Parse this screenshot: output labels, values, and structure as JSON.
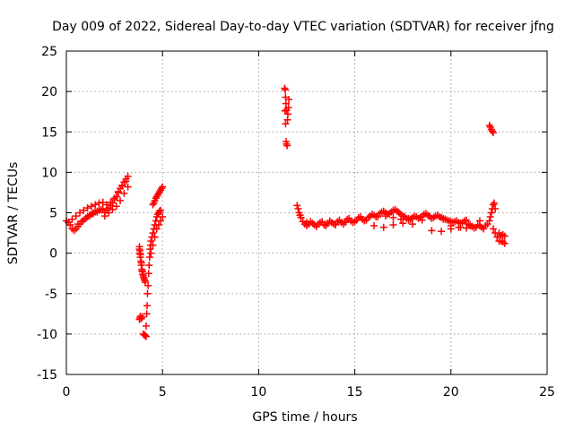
{
  "chart_data": {
    "type": "scatter",
    "title": "Day 009 of 2022, Sidereal Day-to-day VTEC variation (SDTVAR) for receiver jfng",
    "xlabel": "GPS time / hours",
    "ylabel": "SDTVAR / TECUs",
    "xlim": [
      0,
      25
    ],
    "ylim": [
      -15,
      25
    ],
    "xticks": [
      0,
      5,
      10,
      15,
      20,
      25
    ],
    "yticks": [
      -15,
      -10,
      -5,
      0,
      5,
      10,
      15,
      20,
      25
    ],
    "grid": true,
    "marker": "+",
    "colors": {
      "series": "#ff0000",
      "grid": "#a0a0a0",
      "axis": "#000000"
    },
    "series": [
      {
        "name": "SDTVAR",
        "x": [
          0.0,
          0.1,
          0.2,
          0.3,
          0.4,
          0.5,
          0.6,
          0.7,
          0.8,
          0.9,
          1.0,
          1.1,
          1.2,
          1.3,
          1.4,
          1.5,
          1.6,
          1.7,
          1.8,
          1.9,
          0.3,
          0.5,
          0.7,
          0.9,
          1.1,
          1.3,
          1.5,
          1.7,
          1.9,
          0.6,
          0.8,
          1.0,
          1.2,
          1.4,
          1.6,
          2.0,
          2.1,
          2.2,
          2.3,
          2.4,
          2.5,
          2.6,
          2.7,
          2.8,
          2.9,
          3.0,
          3.1,
          3.2,
          2.0,
          2.2,
          2.4,
          2.6,
          2.8,
          3.0,
          3.2,
          2.1,
          2.3,
          2.5,
          2.7,
          2.9,
          3.1,
          3.8,
          3.82,
          3.85,
          3.88,
          3.9,
          3.93,
          3.95,
          3.97,
          4.0,
          4.02,
          4.05,
          4.08,
          4.1,
          3.8,
          3.82,
          3.85,
          3.9,
          3.95,
          3.8,
          3.82,
          3.85,
          3.9,
          3.95,
          4.0,
          4.05,
          4.1,
          4.15,
          4.15,
          4.18,
          4.2,
          4.22,
          4.25,
          4.28,
          4.3,
          4.33,
          4.35,
          4.38,
          4.4,
          4.45,
          4.5,
          4.55,
          4.6,
          4.65,
          4.7,
          4.75,
          4.8,
          4.85,
          4.9,
          4.5,
          4.55,
          4.6,
          4.65,
          4.7,
          4.75,
          4.8,
          4.85,
          4.9,
          4.95,
          5.0,
          4.4,
          4.5,
          4.6,
          4.7,
          4.8,
          4.9,
          5.0,
          11.35,
          11.38,
          11.4,
          11.42,
          11.45,
          11.37,
          11.4,
          11.43,
          11.45,
          11.48,
          11.5,
          11.52,
          11.55,
          11.57,
          12.0,
          12.05,
          12.1,
          12.15,
          12.2,
          12.3,
          12.4,
          12.5,
          12.6,
          12.7,
          12.8,
          12.9,
          13.0,
          13.1,
          13.2,
          13.3,
          13.4,
          13.5,
          13.6,
          13.7,
          13.8,
          13.9,
          14.0,
          14.1,
          14.2,
          14.3,
          14.4,
          14.5,
          14.6,
          14.7,
          14.8,
          14.9,
          15.0,
          15.1,
          15.2,
          15.3,
          15.4,
          15.5,
          15.6,
          15.7,
          15.8,
          15.9,
          16.0,
          16.1,
          16.2,
          16.3,
          16.4,
          16.5,
          16.6,
          16.7,
          16.8,
          16.9,
          17.0,
          17.1,
          17.2,
          17.3,
          17.4,
          17.5,
          17.6,
          17.7,
          17.8,
          17.9,
          18.0,
          18.1,
          18.2,
          18.3,
          18.4,
          18.5,
          18.6,
          18.7,
          18.8,
          18.9,
          19.0,
          19.1,
          19.2,
          19.3,
          19.4,
          19.5,
          19.6,
          19.7,
          19.8,
          19.9,
          20.0,
          20.1,
          20.2,
          20.3,
          20.4,
          20.5,
          20.6,
          20.7,
          20.8,
          20.9,
          21.0,
          21.1,
          21.2,
          21.3,
          21.4,
          21.5,
          21.6,
          21.7,
          21.8,
          21.9,
          12.5,
          13.0,
          13.5,
          14.0,
          14.5,
          15.5,
          16.0,
          16.5,
          17.0,
          17.5,
          18.0,
          18.5,
          19.0,
          19.5,
          20.0,
          20.5,
          21.0,
          21.5,
          16.2,
          16.6,
          17.0,
          17.4,
          17.8,
          19.6,
          20.0,
          20.4,
          20.8,
          22.0,
          22.05,
          22.1,
          22.15,
          22.2,
          22.0,
          22.05,
          22.1,
          22.15,
          22.2,
          22.25,
          22.3,
          22.2,
          22.3,
          22.4,
          22.5,
          22.6,
          22.7,
          22.8,
          22.5,
          22.6,
          22.7,
          22.8
        ],
        "y": [
          4.0,
          3.8,
          3.5,
          3.0,
          2.8,
          3.0,
          3.3,
          3.6,
          3.9,
          4.1,
          4.3,
          4.5,
          4.7,
          4.8,
          5.0,
          5.1,
          5.2,
          5.3,
          5.4,
          5.5,
          4.2,
          4.6,
          5.0,
          5.3,
          5.6,
          5.8,
          6.0,
          6.2,
          6.3,
          3.6,
          3.9,
          4.3,
          4.6,
          4.9,
          5.1,
          5.0,
          5.3,
          5.6,
          5.9,
          6.2,
          6.6,
          7.0,
          7.5,
          8.0,
          8.4,
          8.8,
          9.2,
          9.5,
          4.6,
          5.0,
          5.4,
          5.8,
          6.5,
          7.4,
          8.2,
          6.0,
          6.3,
          6.8,
          7.6,
          8.3,
          8.9,
          0.5,
          0.0,
          -0.5,
          -1.0,
          -1.5,
          -2.0,
          -2.3,
          -2.6,
          -2.8,
          -3.0,
          -3.2,
          -3.4,
          -3.6,
          0.8,
          0.3,
          -0.2,
          -1.2,
          -2.2,
          -8.2,
          -8.0,
          -7.8,
          -8.1,
          -7.9,
          -10.0,
          -10.1,
          -10.2,
          -10.3,
          -9.0,
          -7.5,
          -6.5,
          -5.0,
          -4.0,
          -2.5,
          -1.5,
          -0.5,
          0.5,
          1.0,
          1.5,
          2.0,
          2.5,
          3.0,
          3.5,
          4.0,
          4.5,
          4.8,
          5.0,
          5.2,
          5.3,
          6.0,
          6.2,
          6.5,
          6.8,
          7.0,
          7.2,
          7.4,
          7.6,
          7.8,
          8.0,
          8.2,
          0.0,
          1.0,
          2.0,
          3.0,
          3.5,
          4.0,
          4.5,
          20.4,
          20.2,
          19.3,
          18.5,
          17.7,
          17.6,
          16.0,
          13.8,
          13.5,
          13.3,
          16.5,
          17.2,
          18.0,
          19.0,
          5.9,
          5.5,
          5.0,
          4.7,
          4.4,
          3.9,
          3.6,
          3.4,
          3.6,
          3.9,
          3.7,
          3.5,
          3.3,
          3.6,
          3.8,
          3.9,
          3.5,
          3.4,
          3.7,
          4.0,
          3.8,
          3.6,
          3.5,
          3.9,
          4.1,
          3.8,
          3.6,
          3.9,
          4.2,
          4.3,
          4.0,
          3.8,
          3.9,
          4.1,
          4.4,
          4.5,
          4.2,
          4.0,
          4.1,
          4.4,
          4.6,
          4.8,
          4.7,
          4.5,
          4.6,
          4.9,
          5.1,
          5.2,
          5.0,
          4.8,
          4.9,
          5.1,
          5.3,
          5.4,
          5.2,
          5.0,
          4.8,
          4.6,
          4.5,
          4.3,
          4.1,
          4.2,
          4.4,
          4.6,
          4.5,
          4.3,
          4.4,
          4.6,
          4.8,
          4.9,
          4.7,
          4.5,
          4.3,
          4.4,
          4.6,
          4.7,
          4.5,
          4.4,
          4.3,
          4.2,
          4.1,
          4.0,
          3.9,
          3.8,
          3.9,
          4.0,
          3.8,
          3.7,
          3.8,
          4.0,
          4.1,
          3.6,
          3.4,
          3.3,
          3.1,
          3.2,
          3.5,
          3.4,
          3.2,
          3.0,
          3.4,
          3.6,
          3.8,
          3.3,
          3.5,
          3.6,
          3.8,
          4.0,
          3.4,
          3.2,
          3.5,
          3.7,
          3.6,
          4.1,
          2.8,
          2.7,
          3.0,
          3.2,
          3.5,
          4.0,
          4.5,
          4.6,
          4.4,
          4.2,
          4.3,
          4.2,
          3.4,
          3.2,
          3.1,
          15.8,
          15.6,
          15.3,
          15.1,
          14.9,
          4.0,
          4.5,
          5.0,
          5.5,
          6.0,
          6.2,
          5.5,
          3.0,
          2.5,
          2.0,
          1.5,
          1.5,
          1.4,
          1.2,
          2.5,
          2.2,
          2.3,
          2.1
        ]
      }
    ]
  }
}
